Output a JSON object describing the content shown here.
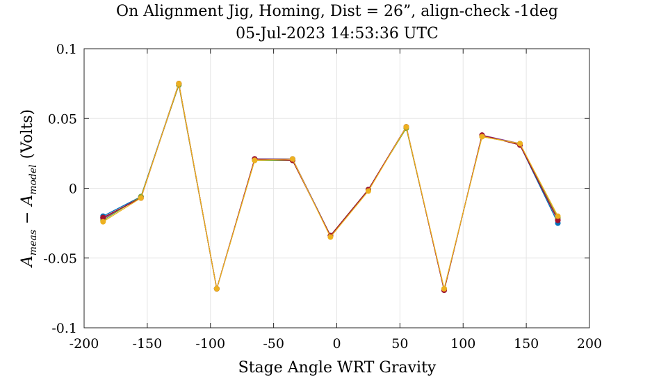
{
  "chart_data": {
    "type": "line",
    "title": "On Alignment Jig, Homing, Dist = 26”, align-check -1deg",
    "subtitle": "05-Jul-2023 14:53:36 UTC",
    "xlabel": "Stage Angle WRT Gravity",
    "ylabel": "A_meas − A_model (Volts)",
    "ylabel_parts": {
      "a1": "A",
      "sub1": "meas",
      "minus": "−",
      "a2": "A",
      "sub2": "model",
      "units": "(Volts)"
    },
    "xlim": [
      -200,
      200
    ],
    "ylim": [
      -0.1,
      0.1
    ],
    "xticks": [
      -200,
      -150,
      -100,
      -50,
      0,
      50,
      100,
      150,
      200
    ],
    "xtick_labels": [
      "-200",
      "-150",
      "-100",
      "-50",
      "0",
      "50",
      "100",
      "150",
      "200"
    ],
    "yticks": [
      -0.1,
      -0.05,
      0,
      0.05,
      0.1
    ],
    "ytick_labels": [
      "-0.1",
      "-0.05",
      "0",
      "0.05",
      "0.1"
    ],
    "grid": true,
    "x": [
      -185,
      -155,
      -125,
      -95,
      -65,
      -35,
      -5,
      25,
      55,
      85,
      115,
      145,
      175
    ],
    "series": [
      {
        "color": "#0072BD",
        "values": [
          -0.02,
          -0.006,
          0.075,
          -0.072,
          0.021,
          0.021,
          -0.034,
          -0.001,
          0.044,
          -0.073,
          0.038,
          0.031,
          -0.025
        ]
      },
      {
        "color": "#D95319",
        "values": [
          -0.021,
          -0.007,
          0.075,
          -0.072,
          0.021,
          0.02,
          -0.034,
          -0.001,
          0.044,
          -0.073,
          0.038,
          0.031,
          -0.022
        ]
      },
      {
        "color": "#7E2F8E",
        "values": [
          -0.022,
          -0.006,
          0.074,
          -0.072,
          0.021,
          0.021,
          -0.034,
          -0.001,
          0.044,
          -0.073,
          0.038,
          0.032,
          -0.023
        ]
      },
      {
        "color": "#77AC30",
        "values": [
          -0.023,
          -0.006,
          0.074,
          -0.072,
          0.02,
          0.02,
          -0.034,
          -0.001,
          0.043,
          -0.072,
          0.037,
          0.032,
          -0.021
        ]
      },
      {
        "color": "#A2142F",
        "values": [
          -0.021,
          -0.007,
          0.075,
          -0.072,
          0.021,
          0.02,
          -0.034,
          -0.001,
          0.044,
          -0.073,
          0.038,
          0.031,
          -0.023
        ]
      },
      {
        "color": "#EDB120",
        "values": [
          -0.024,
          -0.007,
          0.075,
          -0.072,
          0.02,
          0.021,
          -0.035,
          -0.002,
          0.044,
          -0.072,
          0.037,
          0.032,
          -0.02
        ]
      }
    ]
  }
}
